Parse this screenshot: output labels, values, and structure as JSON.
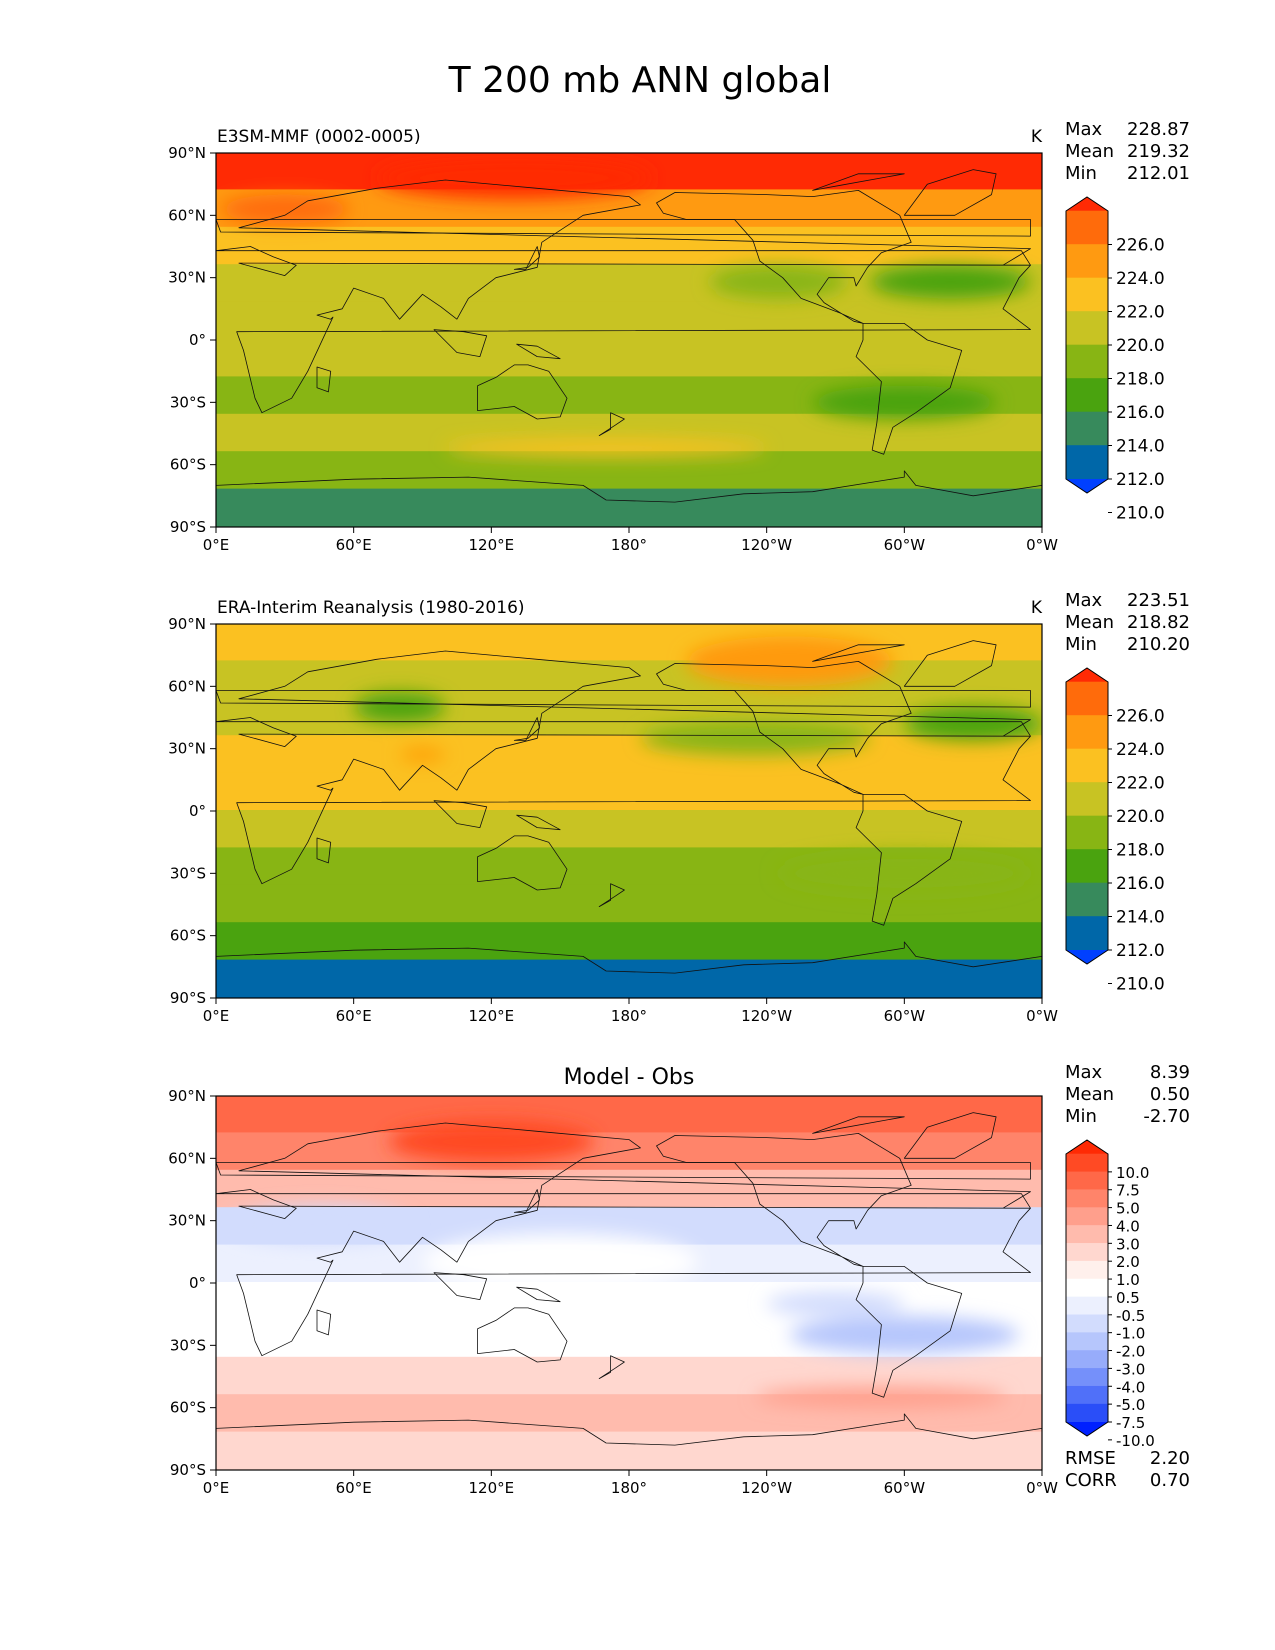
{
  "figure": {
    "title": "T 200 mb ANN global"
  },
  "chart_data": [
    {
      "type": "heatmap",
      "panel": "model",
      "title": "E3SM-MMF (0002-0005)",
      "units": "K",
      "stats": {
        "max_label": "Max",
        "max": "228.87",
        "mean_label": "Mean",
        "mean": "219.32",
        "min_label": "Min",
        "min": "212.01"
      },
      "levels": [
        "226.0",
        "224.0",
        "222.0",
        "220.0",
        "218.0",
        "216.0",
        "214.0",
        "212.0",
        "210.0"
      ],
      "colors": [
        "#ff2a04",
        "#ff6b0b",
        "#ff9a11",
        "#fbc121",
        "#c8c323",
        "#88b514",
        "#4aa30f",
        "#378a5c",
        "#0067a8",
        "#0040ff"
      ],
      "x_ticks": [
        "0°E",
        "60°E",
        "120°E",
        "180°",
        "120°W",
        "60°W",
        "0°W"
      ],
      "y_ticks": [
        "90°N",
        "60°N",
        "30°N",
        "0°",
        "30°S",
        "60°S",
        "90°S"
      ],
      "lat_range": [
        -90,
        90
      ],
      "lon_range": [
        0,
        360
      ],
      "band_colors_north_to_south": [
        "#ff2a04",
        "#ff9a11",
        "#fbc121",
        "#c8c323",
        "#c8c323",
        "#c8c323",
        "#88b514",
        "#c8c323",
        "#88b514",
        "#378a5c"
      ],
      "features": [
        {
          "kind": "blob",
          "lon": 130,
          "lat": 78,
          "rx": 60,
          "ry": 10,
          "color": "#ff2a04"
        },
        {
          "kind": "blob",
          "lon": 30,
          "lat": 63,
          "rx": 28,
          "ry": 7,
          "color": "#ff6b0b"
        },
        {
          "kind": "blob",
          "lon": 245,
          "lat": 28,
          "rx": 30,
          "ry": 8,
          "color": "#88b514"
        },
        {
          "kind": "blob",
          "lon": 320,
          "lat": 28,
          "rx": 35,
          "ry": 8,
          "color": "#4aa30f"
        },
        {
          "kind": "blob",
          "lon": 300,
          "lat": -30,
          "rx": 40,
          "ry": 8,
          "color": "#4aa30f"
        },
        {
          "kind": "blob",
          "lon": 170,
          "lat": -52,
          "rx": 70,
          "ry": 4,
          "color": "#fbc121"
        }
      ]
    },
    {
      "type": "heatmap",
      "panel": "obs",
      "title": "ERA-Interim Reanalysis (1980-2016)",
      "units": "K",
      "stats": {
        "max_label": "Max",
        "max": "223.51",
        "mean_label": "Mean",
        "mean": "218.82",
        "min_label": "Min",
        "min": "210.20"
      },
      "levels": [
        "226.0",
        "224.0",
        "222.0",
        "220.0",
        "218.0",
        "216.0",
        "214.0",
        "212.0",
        "210.0"
      ],
      "colors": [
        "#ff2a04",
        "#ff6b0b",
        "#ff9a11",
        "#fbc121",
        "#c8c323",
        "#88b514",
        "#4aa30f",
        "#378a5c",
        "#0067a8",
        "#0040ff"
      ],
      "x_ticks": [
        "0°E",
        "60°E",
        "120°E",
        "180°",
        "120°W",
        "60°W",
        "0°W"
      ],
      "y_ticks": [
        "90°N",
        "60°N",
        "30°N",
        "0°",
        "30°S",
        "60°S",
        "90°S"
      ],
      "lat_range": [
        -90,
        90
      ],
      "lon_range": [
        0,
        360
      ],
      "band_colors_north_to_south": [
        "#fbc121",
        "#c8c323",
        "#c8c323",
        "#fbc121",
        "#fbc121",
        "#c8c323",
        "#88b514",
        "#88b514",
        "#4aa30f",
        "#0067a8"
      ],
      "features": [
        {
          "kind": "blob",
          "lon": 250,
          "lat": 72,
          "rx": 45,
          "ry": 12,
          "color": "#ff9a11"
        },
        {
          "kind": "blob",
          "lon": 90,
          "lat": 27,
          "rx": 10,
          "ry": 3,
          "color": "#ff9a11"
        },
        {
          "kind": "blob",
          "lon": 80,
          "lat": 50,
          "rx": 20,
          "ry": 7,
          "color": "#4aa30f"
        },
        {
          "kind": "blob",
          "lon": 235,
          "lat": 35,
          "rx": 50,
          "ry": 8,
          "color": "#88b514"
        },
        {
          "kind": "blob",
          "lon": 330,
          "lat": 42,
          "rx": 30,
          "ry": 8,
          "color": "#4aa30f"
        },
        {
          "kind": "blob",
          "lon": 300,
          "lat": -30,
          "rx": 55,
          "ry": 10,
          "color": "#88b514"
        }
      ]
    },
    {
      "type": "heatmap",
      "panel": "diff",
      "title": "Model - Obs",
      "units": "",
      "stats": {
        "max_label": "Max",
        "max": "8.39",
        "mean_label": "Mean",
        "mean": "0.50",
        "min_label": "Min",
        "min": "-2.70"
      },
      "levels": [
        "10.0",
        "7.5",
        "5.0",
        "4.0",
        "3.0",
        "2.0",
        "1.0",
        "0.5",
        "-0.5",
        "-1.0",
        "-2.0",
        "-3.0",
        "-4.0",
        "-5.0",
        "-7.5",
        "-10.0"
      ],
      "colors": [
        "#ff2a04",
        "#ff4a24",
        "#ff6848",
        "#ff846a",
        "#ff9f8c",
        "#ffbbad",
        "#ffd7cf",
        "#fff0ec",
        "#ffffff",
        "#ecf0fe",
        "#d2dcfd",
        "#b6c6fc",
        "#97acfb",
        "#7590fa",
        "#5070f9",
        "#2a4ef8",
        "#0020ff"
      ],
      "x_ticks": [
        "0°E",
        "60°E",
        "120°E",
        "180°",
        "120°W",
        "60°W",
        "0°W"
      ],
      "y_ticks": [
        "90°N",
        "60°N",
        "30°N",
        "0°",
        "30°S",
        "60°S",
        "90°S"
      ],
      "lat_range": [
        -90,
        90
      ],
      "lon_range": [
        0,
        360
      ],
      "band_colors_north_to_south": [
        "#ff6848",
        "#ff846a",
        "#ffbbad",
        "#d2dcfd",
        "#ecf0fe",
        "#ffffff",
        "#ffffff",
        "#ffd7cf",
        "#ffbbad",
        "#ffd7cf"
      ],
      "features": [
        {
          "kind": "blob",
          "lon": 120,
          "lat": 68,
          "rx": 45,
          "ry": 10,
          "color": "#ff4a24"
        },
        {
          "kind": "blob",
          "lon": 45,
          "lat": 28,
          "rx": 40,
          "ry": 9,
          "color": "#d2dcfd"
        },
        {
          "kind": "blob",
          "lon": 150,
          "lat": 10,
          "rx": 60,
          "ry": 14,
          "color": "#ffffff"
        },
        {
          "kind": "blob",
          "lon": 300,
          "lat": -25,
          "rx": 50,
          "ry": 9,
          "color": "#b6c6fc"
        },
        {
          "kind": "blob",
          "lon": 270,
          "lat": -10,
          "rx": 30,
          "ry": 6,
          "color": "#d2dcfd"
        },
        {
          "kind": "blob",
          "lon": 290,
          "lat": -55,
          "rx": 55,
          "ry": 5,
          "color": "#ff9f8c"
        }
      ],
      "rmse_label": "RMSE",
      "rmse": "2.20",
      "corr_label": "CORR",
      "corr": "0.70"
    }
  ]
}
